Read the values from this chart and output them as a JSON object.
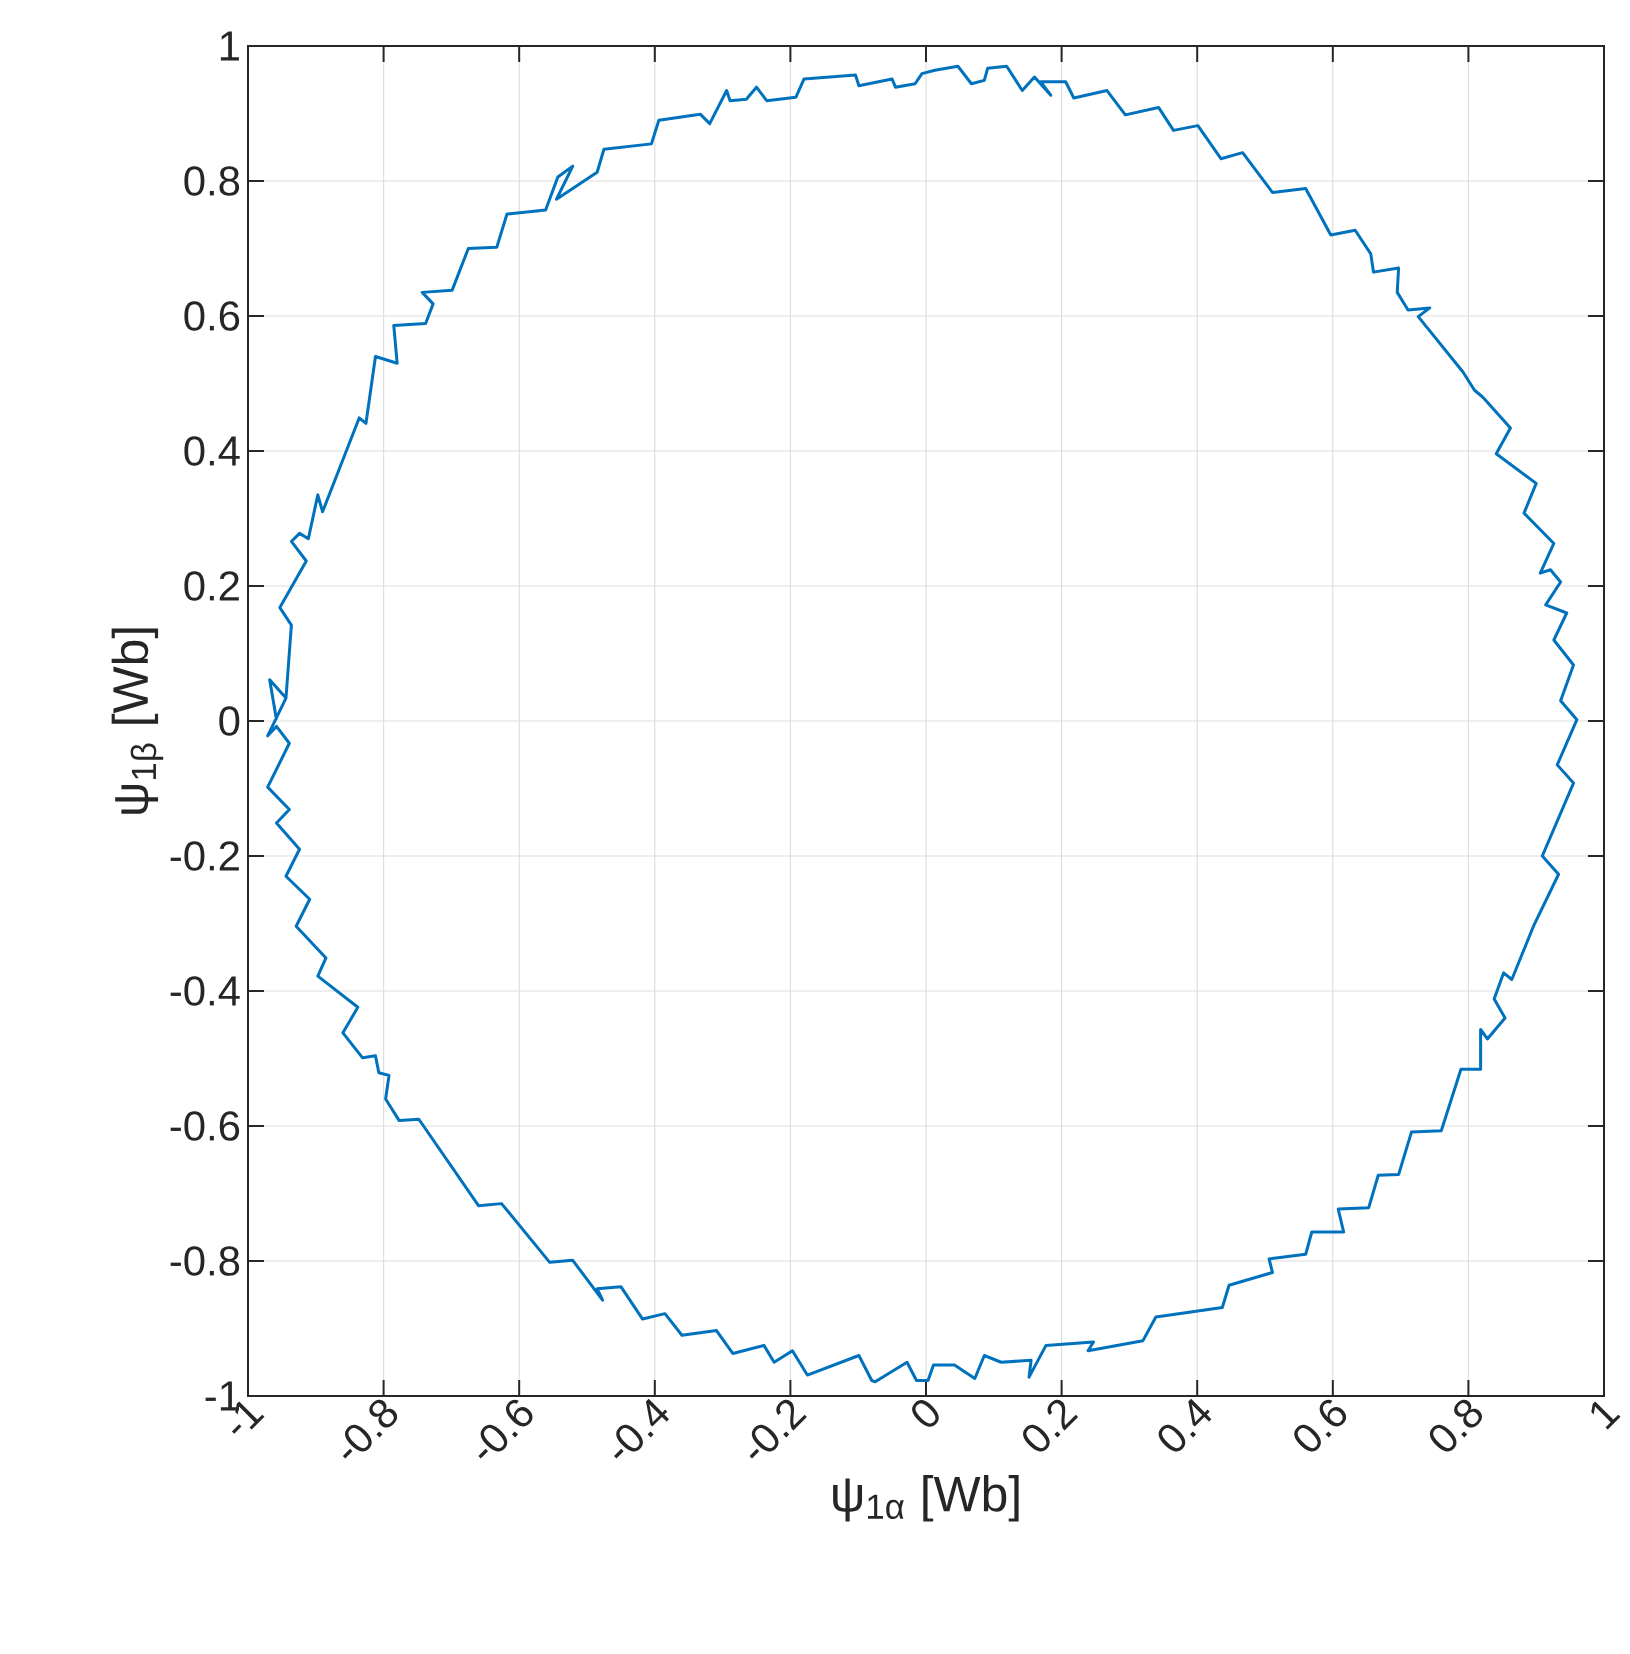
{
  "chart_data": {
    "type": "line",
    "xlabel": "ψ$_{1α}$ [Wb]",
    "ylabel": "ψ$_{1β}$ [Wb]",
    "xlim": [
      -1,
      1
    ],
    "ylim": [
      -1,
      1
    ],
    "xticks": [
      -1,
      -0.8,
      -0.6,
      -0.4,
      -0.2,
      0,
      0.2,
      0.4,
      0.6,
      0.8,
      1
    ],
    "yticks": [
      -1,
      -0.8,
      -0.6,
      -0.4,
      -0.2,
      0,
      0.2,
      0.4,
      0.6,
      0.8,
      1
    ],
    "grid": true,
    "line_style": "solid",
    "marker": "none",
    "x": [
      -0.958,
      -0.968,
      -0.944,
      -0.936,
      -0.953,
      -0.914,
      -0.936,
      -0.924,
      -0.911,
      -0.897,
      -0.89,
      -0.836,
      -0.826,
      -0.812,
      -0.78,
      -0.785,
      -0.738,
      -0.727,
      -0.743,
      -0.699,
      -0.675,
      -0.633,
      -0.618,
      -0.561,
      -0.543,
      -0.521,
      -0.545,
      -0.485,
      -0.475,
      -0.405,
      -0.394,
      -0.333,
      -0.319,
      -0.294,
      -0.289,
      -0.265,
      -0.25,
      -0.235,
      -0.192,
      -0.18,
      -0.104,
      -0.099,
      -0.05,
      -0.045,
      -0.016,
      -0.006,
      0.013,
      0.047,
      0.067,
      0.086,
      0.091,
      0.119,
      0.142,
      0.16,
      0.184,
      0.169,
      0.206,
      0.218,
      0.267,
      0.294,
      0.343,
      0.365,
      0.401,
      0.435,
      0.467,
      0.511,
      0.56,
      0.597,
      0.633,
      0.656,
      0.66,
      0.697,
      0.695,
      0.711,
      0.743,
      0.726,
      0.792,
      0.809,
      0.821,
      0.862,
      0.841,
      0.9,
      0.882,
      0.926,
      0.906,
      0.921,
      0.936,
      0.914,
      0.945,
      0.926,
      0.955,
      0.936,
      0.96,
      0.931,
      0.955,
      0.909,
      0.933,
      0.896,
      0.864,
      0.852,
      0.838,
      0.854,
      0.828,
      0.818,
      0.818,
      0.789,
      0.76,
      0.716,
      0.697,
      0.667,
      0.653,
      0.608,
      0.616,
      0.569,
      0.56,
      0.506,
      0.511,
      0.447,
      0.437,
      0.339,
      0.32,
      0.239,
      0.247,
      0.177,
      0.152,
      0.155,
      0.111,
      0.086,
      0.072,
      0.042,
      0.011,
      0.003,
      -0.014,
      -0.028,
      -0.075,
      -0.08,
      -0.099,
      -0.175,
      -0.197,
      -0.224,
      -0.239,
      -0.285,
      -0.309,
      -0.36,
      -0.385,
      -0.418,
      -0.45,
      -0.485,
      -0.477,
      -0.521,
      -0.555,
      -0.626,
      -0.66,
      -0.748,
      -0.777,
      -0.797,
      -0.792,
      -0.807,
      -0.812,
      -0.831,
      -0.86,
      -0.838,
      -0.897,
      -0.885,
      -0.929,
      -0.909,
      -0.944,
      -0.924,
      -0.958,
      -0.939,
      -0.971,
      -0.939,
      -0.958,
      -0.971,
      -0.944
    ],
    "series": [
      {
        "color": "#0072bd",
        "values": [
          0.002,
          0.061,
          0.034,
          0.142,
          0.168,
          0.237,
          0.266,
          0.278,
          0.27,
          0.335,
          0.31,
          0.449,
          0.441,
          0.54,
          0.53,
          0.586,
          0.589,
          0.618,
          0.635,
          0.638,
          0.7,
          0.702,
          0.751,
          0.757,
          0.806,
          0.822,
          0.773,
          0.813,
          0.847,
          0.855,
          0.89,
          0.899,
          0.885,
          0.934,
          0.919,
          0.921,
          0.939,
          0.919,
          0.924,
          0.951,
          0.957,
          0.941,
          0.951,
          0.939,
          0.944,
          0.959,
          0.964,
          0.97,
          0.944,
          0.949,
          0.967,
          0.97,
          0.934,
          0.954,
          0.927,
          0.947,
          0.947,
          0.923,
          0.934,
          0.898,
          0.909,
          0.875,
          0.882,
          0.833,
          0.842,
          0.783,
          0.789,
          0.72,
          0.727,
          0.692,
          0.665,
          0.671,
          0.635,
          0.609,
          0.612,
          0.599,
          0.517,
          0.49,
          0.48,
          0.434,
          0.396,
          0.352,
          0.308,
          0.263,
          0.219,
          0.224,
          0.206,
          0.172,
          0.16,
          0.12,
          0.083,
          0.03,
          0.002,
          -0.065,
          -0.092,
          -0.2,
          -0.227,
          -0.304,
          -0.383,
          -0.373,
          -0.412,
          -0.44,
          -0.471,
          -0.457,
          -0.516,
          -0.516,
          -0.607,
          -0.609,
          -0.672,
          -0.673,
          -0.721,
          -0.723,
          -0.757,
          -0.757,
          -0.79,
          -0.797,
          -0.817,
          -0.836,
          -0.869,
          -0.883,
          -0.918,
          -0.933,
          -0.92,
          -0.925,
          -0.972,
          -0.947,
          -0.95,
          -0.94,
          -0.974,
          -0.954,
          -0.954,
          -0.977,
          -0.977,
          -0.95,
          -0.979,
          -0.977,
          -0.94,
          -0.969,
          -0.933,
          -0.95,
          -0.925,
          -0.937,
          -0.903,
          -0.91,
          -0.878,
          -0.886,
          -0.838,
          -0.841,
          -0.858,
          -0.799,
          -0.802,
          -0.715,
          -0.718,
          -0.59,
          -0.592,
          -0.56,
          -0.525,
          -0.521,
          -0.496,
          -0.499,
          -0.462,
          -0.424,
          -0.378,
          -0.351,
          -0.304,
          -0.264,
          -0.23,
          -0.19,
          -0.151,
          -0.131,
          -0.098,
          -0.033,
          -0.008,
          -0.022,
          0.034
        ]
      }
    ]
  }
}
